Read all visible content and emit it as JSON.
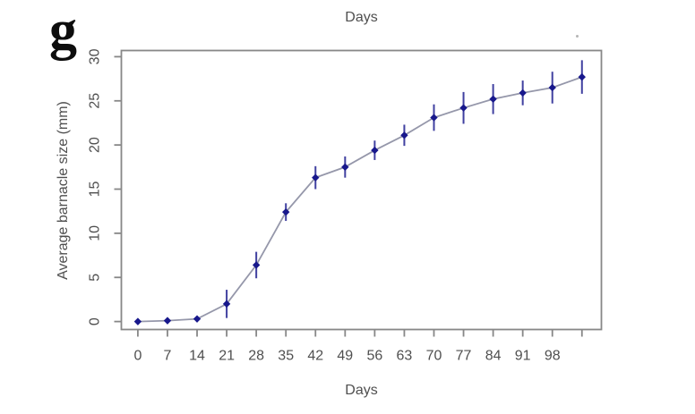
{
  "panel_label": "g",
  "chart_data": {
    "type": "line",
    "title": "Days",
    "xlabel": "Days",
    "ylabel": "Average barnacle size (mm)",
    "grid": false,
    "legend": "none",
    "error_bars": true,
    "marker": "filled-diamond",
    "xlim": [
      -3.9,
      109.6
    ],
    "ylim": [
      -0.9,
      30.7
    ],
    "x_ticks": [
      0,
      7,
      14,
      21,
      28,
      35,
      42,
      49,
      56,
      63,
      70,
      77,
      84,
      91,
      98,
      105
    ],
    "x_tick_labels": [
      "0",
      "7",
      "14",
      "21",
      "28",
      "35",
      "42",
      "49",
      "56",
      "63",
      "70",
      "77",
      "84",
      "91",
      "98",
      ""
    ],
    "y_ticks": [
      0,
      5,
      10,
      15,
      20,
      25,
      30
    ],
    "series": [
      {
        "name": "average barnacle size",
        "x": [
          0,
          7,
          14,
          21,
          28,
          35,
          42,
          49,
          56,
          63,
          70,
          77,
          84,
          91,
          98,
          105
        ],
        "values": [
          0.0,
          0.1,
          0.3,
          2.0,
          6.4,
          12.4,
          16.3,
          17.5,
          19.4,
          21.1,
          23.1,
          24.2,
          25.2,
          25.9,
          26.5,
          27.7
        ],
        "errors": [
          0,
          0,
          0,
          1.6,
          1.5,
          1.0,
          1.3,
          1.2,
          1.1,
          1.2,
          1.5,
          1.8,
          1.7,
          1.4,
          1.8,
          1.9
        ]
      }
    ]
  },
  "style": {
    "axis_color": "#878787",
    "text_color": "#4f4f4f",
    "line_color": "#9597aa",
    "error_bar_color": "#4040a0",
    "marker_color": "#18188c",
    "background": "#ffffff"
  }
}
